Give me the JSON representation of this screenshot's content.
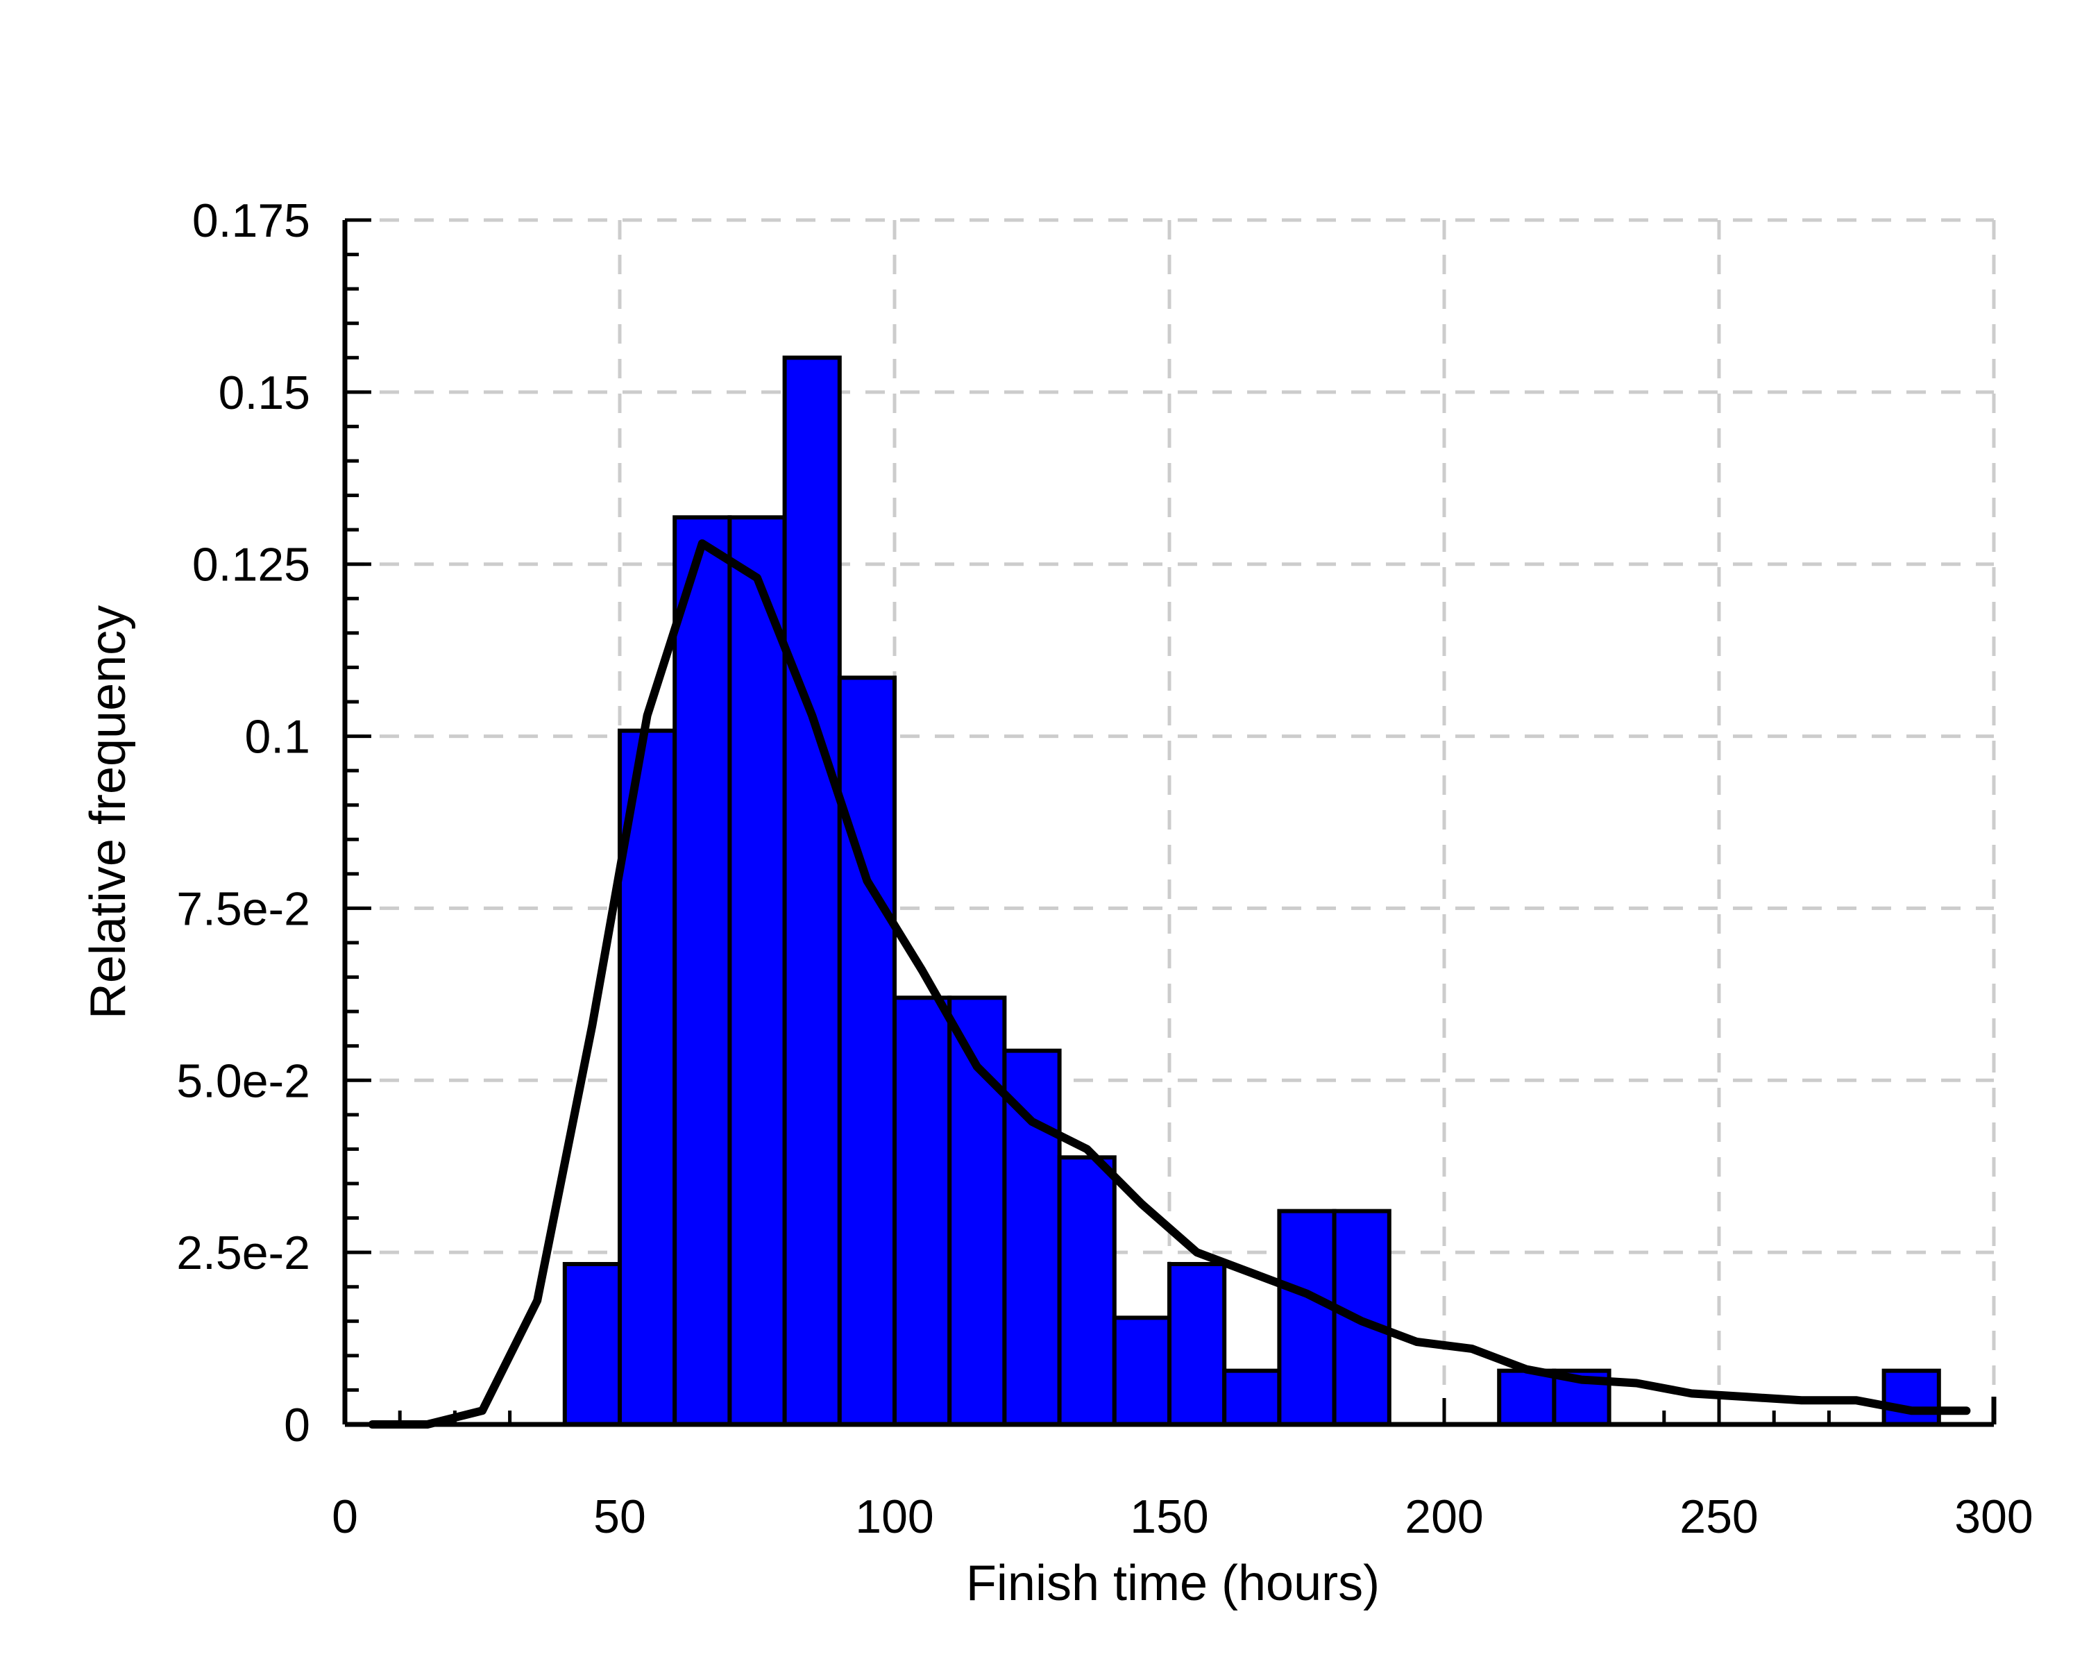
{
  "chart_data": {
    "type": "bar",
    "title": "",
    "xlabel": "Finish time (hours)",
    "ylabel": "Relative frequency",
    "xlim": [
      0,
      300
    ],
    "ylim": [
      0,
      0.175
    ],
    "grid": true,
    "x_ticks": [
      {
        "value": 0,
        "label": "0"
      },
      {
        "value": 50,
        "label": "50"
      },
      {
        "value": 100,
        "label": "100"
      },
      {
        "value": 150,
        "label": "150"
      },
      {
        "value": 200,
        "label": "200"
      },
      {
        "value": 250,
        "label": "250"
      },
      {
        "value": 300,
        "label": "300"
      }
    ],
    "y_ticks": [
      {
        "value": 0,
        "label": "0"
      },
      {
        "value": 0.025,
        "label": "2.5e-2"
      },
      {
        "value": 0.05,
        "label": "5.0e-2"
      },
      {
        "value": 0.075,
        "label": "7.5e-2"
      },
      {
        "value": 0.1,
        "label": "0.1"
      },
      {
        "value": 0.125,
        "label": "0.125"
      },
      {
        "value": 0.15,
        "label": "0.15"
      },
      {
        "value": 0.175,
        "label": "0.175"
      }
    ],
    "bar_color": "#0000ff",
    "line_color": "#000000",
    "bins": [
      {
        "x0": 40,
        "x1": 50,
        "value": 0.0233
      },
      {
        "x0": 50,
        "x1": 60,
        "value": 0.1008
      },
      {
        "x0": 60,
        "x1": 70,
        "value": 0.1318
      },
      {
        "x0": 70,
        "x1": 80,
        "value": 0.1318
      },
      {
        "x0": 80,
        "x1": 90,
        "value": 0.155
      },
      {
        "x0": 90,
        "x1": 100,
        "value": 0.1085
      },
      {
        "x0": 100,
        "x1": 110,
        "value": 0.062
      },
      {
        "x0": 110,
        "x1": 120,
        "value": 0.062
      },
      {
        "x0": 120,
        "x1": 130,
        "value": 0.0543
      },
      {
        "x0": 130,
        "x1": 140,
        "value": 0.0388
      },
      {
        "x0": 140,
        "x1": 150,
        "value": 0.0155
      },
      {
        "x0": 150,
        "x1": 160,
        "value": 0.0233
      },
      {
        "x0": 160,
        "x1": 170,
        "value": 0.0078
      },
      {
        "x0": 170,
        "x1": 180,
        "value": 0.031
      },
      {
        "x0": 180,
        "x1": 190,
        "value": 0.031
      },
      {
        "x0": 210,
        "x1": 220,
        "value": 0.0078
      },
      {
        "x0": 220,
        "x1": 230,
        "value": 0.0078
      },
      {
        "x0": 280,
        "x1": 290,
        "value": 0.0078
      }
    ],
    "line": {
      "x": [
        5,
        15,
        25,
        35,
        45,
        55,
        65,
        75,
        85,
        95,
        105,
        115,
        125,
        135,
        145,
        155,
        165,
        175,
        185,
        195,
        205,
        215,
        225,
        235,
        245,
        255,
        265,
        275,
        285,
        295
      ],
      "y": [
        0,
        0,
        0.002,
        0.018,
        0.058,
        0.103,
        0.128,
        0.123,
        0.103,
        0.079,
        0.066,
        0.052,
        0.044,
        0.04,
        0.032,
        0.025,
        0.022,
        0.019,
        0.015,
        0.012,
        0.011,
        0.008,
        0.0065,
        0.006,
        0.0045,
        0.004,
        0.0035,
        0.0035,
        0.002,
        0.002
      ]
    }
  }
}
